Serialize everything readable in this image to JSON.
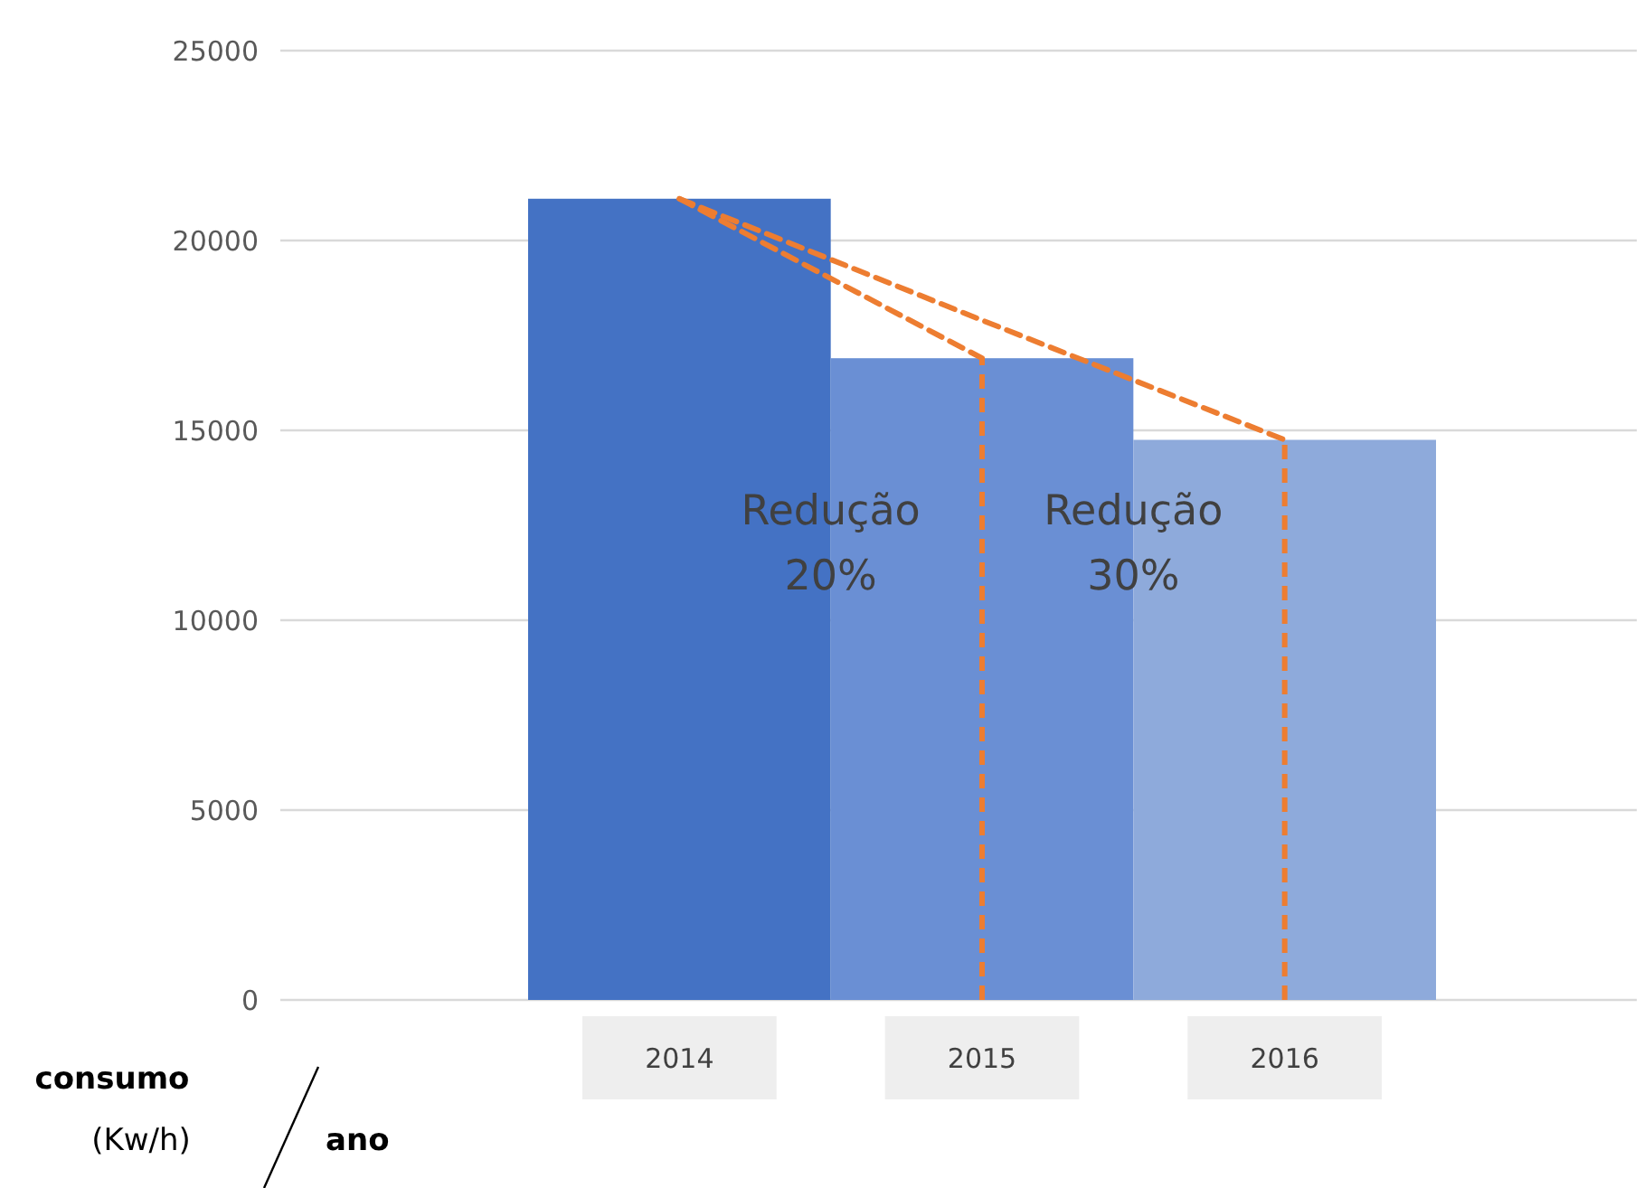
{
  "chart_data": {
    "type": "bar",
    "ylabel": "consumo (Kw/h)",
    "xlabel": "ano",
    "categories": [
      "2014",
      "2015",
      "2016"
    ],
    "series": [
      {
        "values": [
          21100,
          16900,
          14750
        ],
        "colors": [
          "#4472c4",
          "#6a8fd4",
          "#8eaadb"
        ]
      },
      {
        "type": "line",
        "values": [
          21100,
          16900,
          null
        ],
        "color": "#ed7d31",
        "line_style": "dashed"
      },
      {
        "type": "line",
        "values": [
          21100,
          17900,
          14750
        ],
        "color": "#ed7d31",
        "line_style": "dashed"
      }
    ],
    "ref_lines": [
      {
        "axis": "x",
        "value": "2015",
        "color": "#ed7d31",
        "line_style": "dashed"
      },
      {
        "axis": "x",
        "value": "2016",
        "color": "#ed7d31",
        "line_style": "dashed"
      }
    ],
    "annotations": [
      "Redução 20%",
      "Redução 30%"
    ],
    "ylim": [
      0,
      25000
    ],
    "yticks": [
      0,
      5000,
      10000,
      15000,
      20000,
      25000
    ],
    "grid": "y"
  }
}
